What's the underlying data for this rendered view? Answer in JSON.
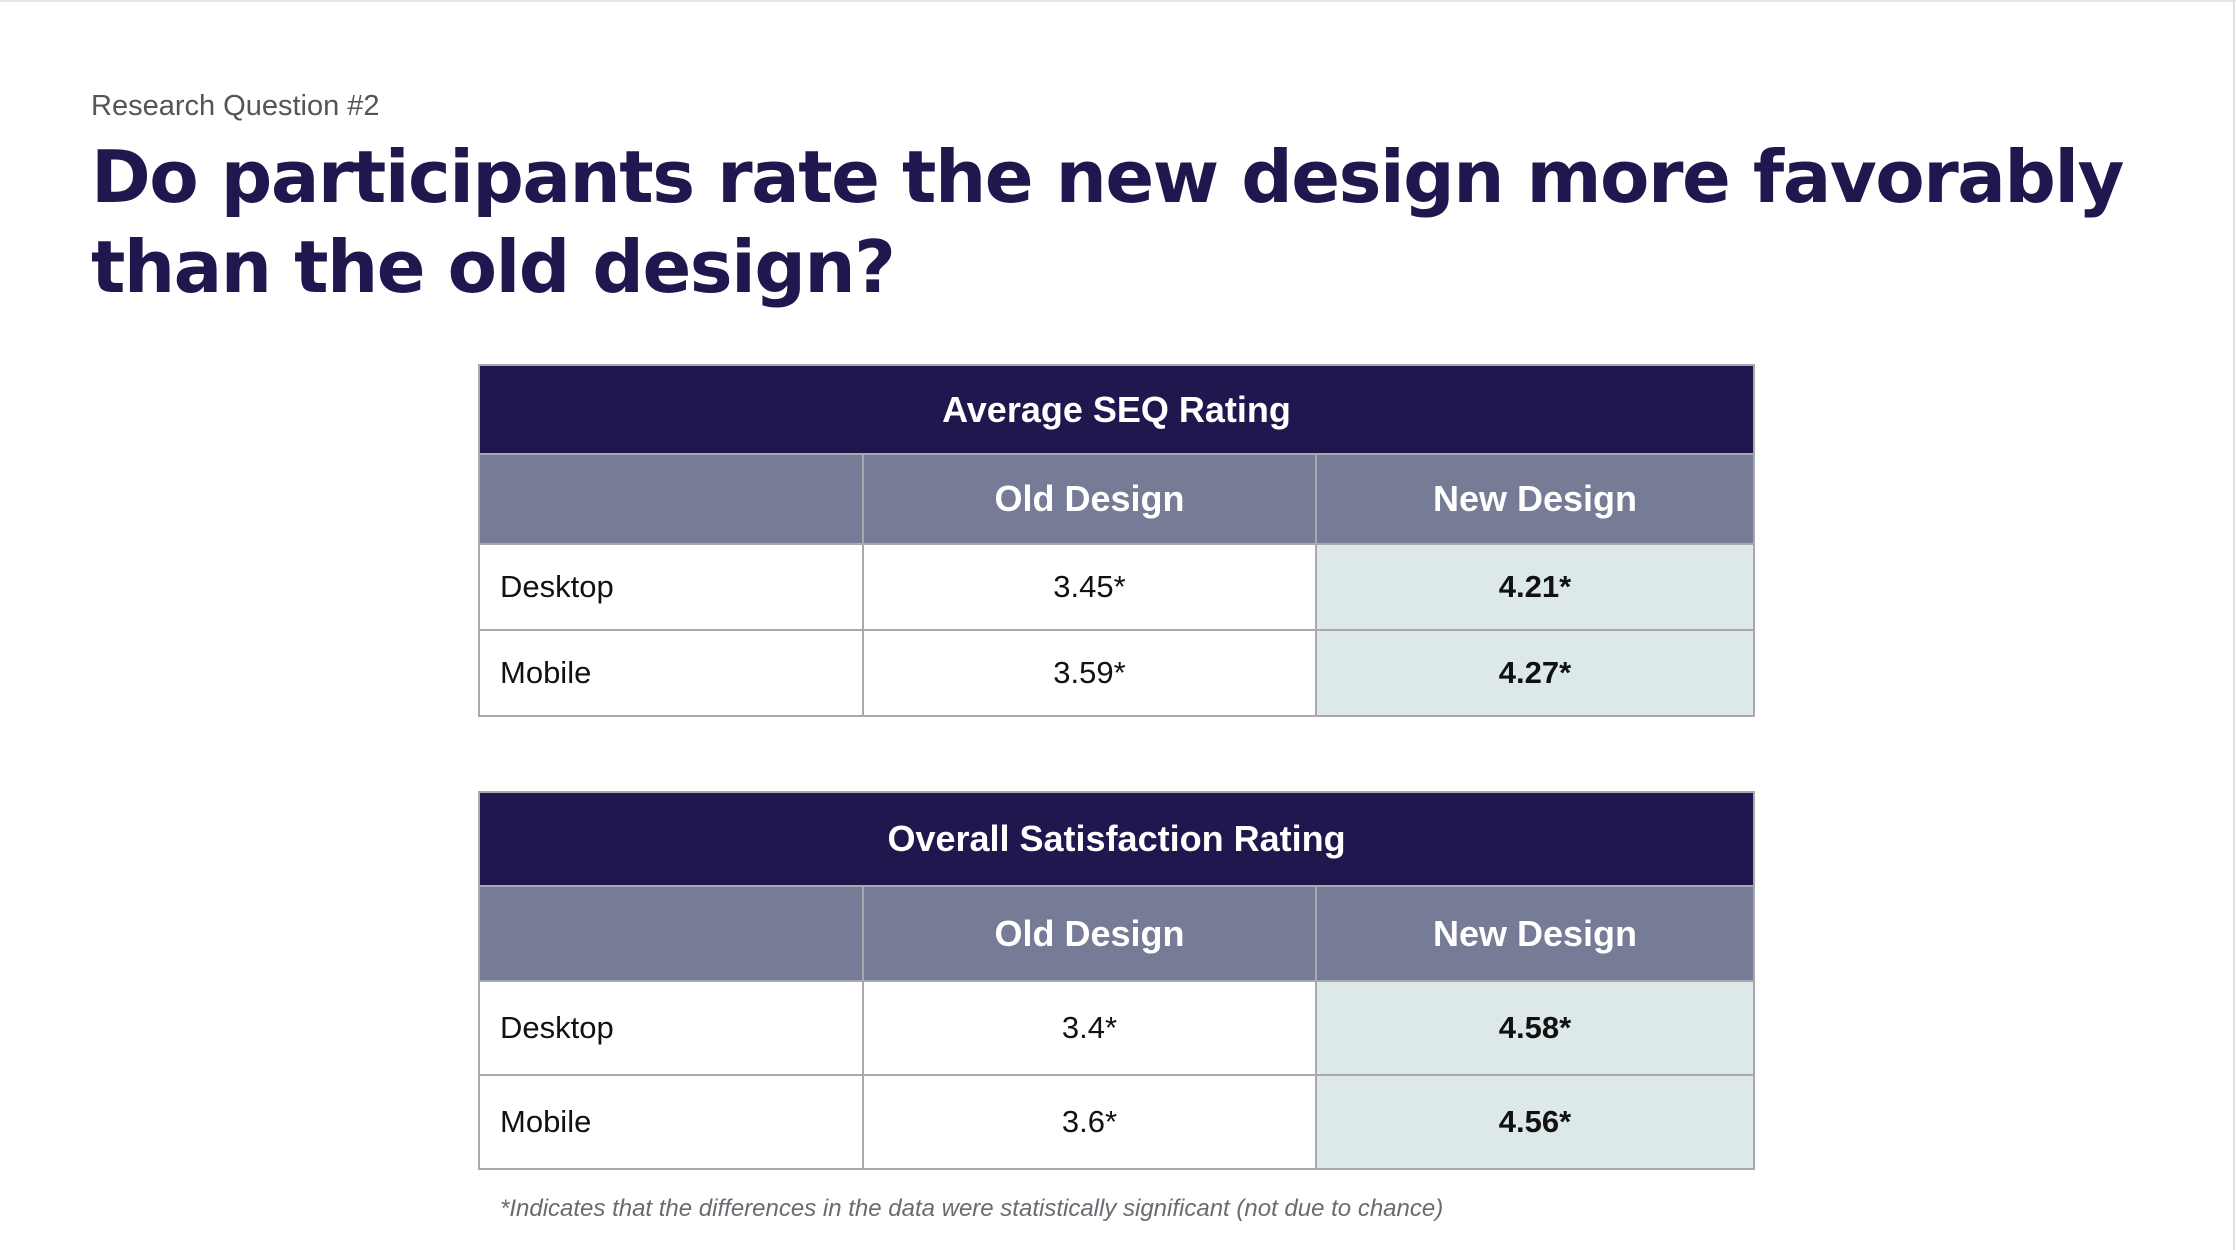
{
  "slide": {
    "eyebrow": "Research Question #2",
    "title": "Do participants rate the new design more favorably than the old design?"
  },
  "tables": {
    "seq": {
      "title": "Average SEQ Rating",
      "columns": [
        "",
        "Old Design",
        "New Design"
      ],
      "rows": [
        {
          "label": "Desktop",
          "old": "3.45*",
          "new": "4.21*"
        },
        {
          "label": "Mobile",
          "old": "3.59*",
          "new": "4.27*"
        }
      ]
    },
    "satisfaction": {
      "title": "Overall Satisfaction Rating",
      "columns": [
        "",
        "Old Design",
        "New Design"
      ],
      "rows": [
        {
          "label": "Desktop",
          "old": "3.4*",
          "new": "4.58*"
        },
        {
          "label": "Mobile",
          "old": "3.6*",
          "new": "4.56*"
        }
      ]
    }
  },
  "footnote": "*Indicates that the differences in the data were statistically significant (not due to chance)",
  "colors": {
    "title": "#21174f",
    "table_caption_bg": "#21174f",
    "table_header_bg": "#767c96",
    "new_design_highlight": "#dde8e8",
    "border": "#a9a9ad"
  }
}
